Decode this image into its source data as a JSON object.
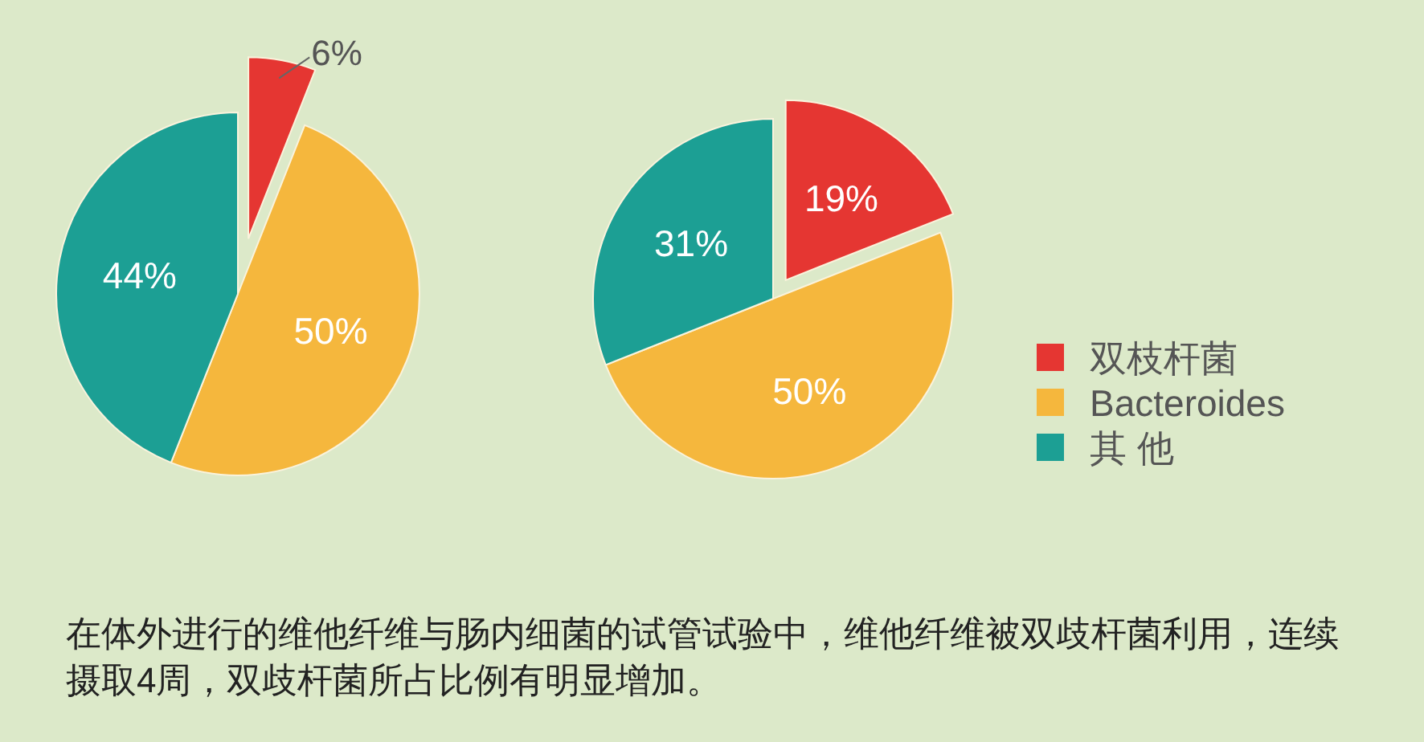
{
  "chart_data": [
    {
      "type": "pie",
      "categories": [
        null,
        null,
        null
      ],
      "values": [
        6,
        50,
        44
      ],
      "colors": [
        "#e53632",
        "#f5b73d",
        "#1c9f94"
      ],
      "value_labels": [
        "6%",
        "50%",
        "44%"
      ],
      "annotations": [
        "在体外进行的维他纤维与肠内细菌的试管试验中，维他纤维被双歧杆菌利用，连续摄取4周，双歧杆菌所占比例有明显增加。"
      ]
    },
    {
      "type": "pie",
      "categories": [
        "双枝杆菌",
        "Bacteroides",
        "其 他"
      ],
      "values": [
        19,
        50,
        31
      ],
      "colors": [
        "#e53632",
        "#f5b73d",
        "#1c9f94"
      ],
      "value_labels": [
        "19%",
        "50%",
        "31%"
      ],
      "legend": "right"
    }
  ]
}
